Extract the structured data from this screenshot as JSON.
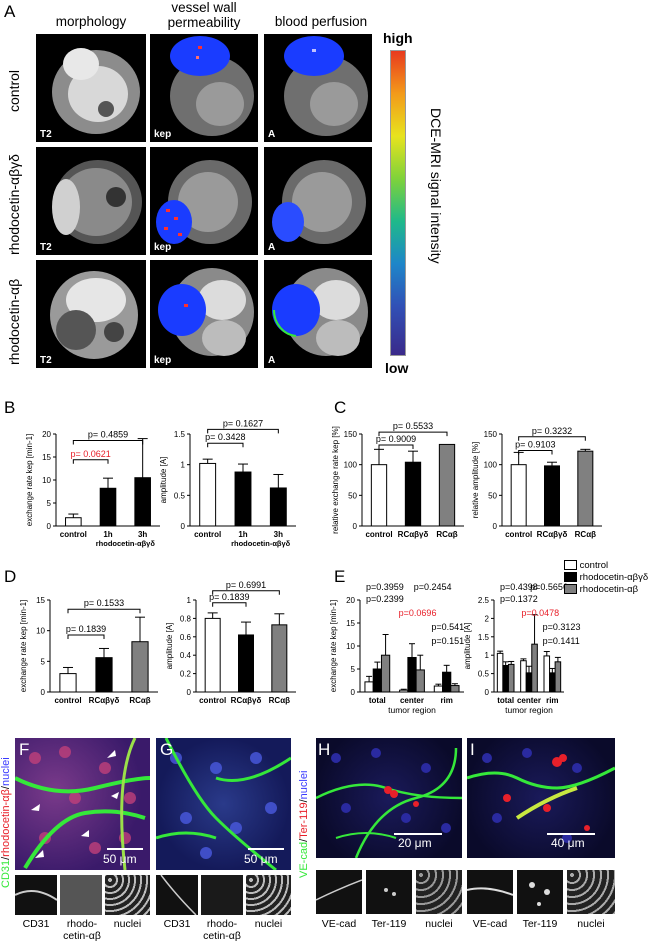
{
  "panel_letters": {
    "A": "A",
    "B": "B",
    "C": "C",
    "D": "D",
    "E": "E",
    "F": "F",
    "G": "G",
    "H": "H",
    "I": "I"
  },
  "panelA": {
    "columns": [
      "morphology",
      "vessel wall permeability",
      "blood perfusion"
    ],
    "columns_lines": [
      [
        "morphology"
      ],
      [
        "vessel wall",
        "permeability"
      ],
      [
        "blood perfusion"
      ]
    ],
    "rows": [
      "control",
      "rhodocetin-αβγδ",
      "rhodocetin-αβ"
    ],
    "tags": [
      "T2",
      "kep",
      "A"
    ],
    "colorbar": {
      "high": "high",
      "low": "low",
      "label": "DCE-MRI signal intensity"
    }
  },
  "chart_data": [
    {
      "panel": "B1",
      "type": "bar",
      "categories": [
        "control",
        "1h",
        "3h"
      ],
      "group_label": "rhodocetin-αβγδ",
      "values": [
        1.8,
        8.2,
        10.5
      ],
      "errors": [
        0.8,
        2.2,
        8.5
      ],
      "ylabel": "exchange rate kep [min-1]",
      "ylim": [
        0,
        20
      ],
      "yticks": [
        0,
        5,
        10,
        15,
        20
      ],
      "colors": [
        "#ffffff",
        "#000000",
        "#000000"
      ],
      "pvals": [
        "p= 0.0621",
        "p= 0.4859"
      ],
      "pval_colors": [
        "#e8202a",
        "#000000"
      ]
    },
    {
      "panel": "B2",
      "type": "bar",
      "categories": [
        "control",
        "1h",
        "3h"
      ],
      "group_label": "rhodocetin-αβγδ",
      "values": [
        1.02,
        0.88,
        0.62
      ],
      "errors": [
        0.07,
        0.13,
        0.22
      ],
      "ylabel": "amplitude [A]",
      "ylim": [
        0,
        1.5
      ],
      "yticks": [
        0.0,
        0.5,
        1.0,
        1.5
      ],
      "colors": [
        "#ffffff",
        "#000000",
        "#000000"
      ],
      "pvals": [
        "p= 0.3428",
        "p= 0.1627"
      ],
      "pval_colors": [
        "#000000",
        "#000000"
      ]
    },
    {
      "panel": "C1",
      "type": "bar",
      "categories": [
        "control",
        "RCαβγδ",
        "RCαβ"
      ],
      "values": [
        100,
        104,
        133
      ],
      "errors": [
        25,
        18,
        0
      ],
      "ylabel": "relative exchange rate kep [%]",
      "ylim": [
        0,
        150
      ],
      "yticks": [
        0,
        50,
        100,
        150
      ],
      "colors": [
        "#ffffff",
        "#000000",
        "#808080"
      ],
      "pvals": [
        "p= 0.9009",
        "p= 0.5533"
      ],
      "pval_colors": [
        "#000000",
        "#000000"
      ]
    },
    {
      "panel": "C2",
      "type": "bar",
      "categories": [
        "control",
        "RCαβγδ",
        "RCαβ"
      ],
      "values": [
        100,
        98,
        122
      ],
      "errors": [
        20,
        6,
        3
      ],
      "ylabel": "relative amplitude [%]",
      "ylim": [
        0,
        150
      ],
      "yticks": [
        0,
        50,
        100,
        150
      ],
      "colors": [
        "#ffffff",
        "#000000",
        "#808080"
      ],
      "pvals": [
        "p= 0.9103",
        "p= 0.3232"
      ],
      "pval_colors": [
        "#000000",
        "#000000"
      ]
    },
    {
      "panel": "D1",
      "type": "bar",
      "categories": [
        "control",
        "RCαβγδ",
        "RCαβ"
      ],
      "values": [
        3.0,
        5.6,
        8.2
      ],
      "errors": [
        1.0,
        1.5,
        4.0
      ],
      "ylabel": "exchange rate kep [min-1]",
      "ylim": [
        0,
        15
      ],
      "yticks": [
        0,
        5,
        10,
        15
      ],
      "colors": [
        "#ffffff",
        "#000000",
        "#808080"
      ],
      "pvals": [
        "p= 0.1839",
        "p= 0.1533"
      ],
      "pval_colors": [
        "#000000",
        "#000000"
      ]
    },
    {
      "panel": "D2",
      "type": "bar",
      "categories": [
        "control",
        "RCαβγδ",
        "RCαβ"
      ],
      "values": [
        0.8,
        0.62,
        0.73
      ],
      "errors": [
        0.06,
        0.14,
        0.12
      ],
      "ylabel": "amplitude [A]",
      "ylim": [
        0,
        1.0
      ],
      "yticks": [
        0.0,
        0.2,
        0.4,
        0.6,
        0.8,
        1.0
      ],
      "colors": [
        "#ffffff",
        "#000000",
        "#808080"
      ],
      "pvals": [
        "p= 0.1839",
        "p= 0.6991"
      ],
      "pval_colors": [
        "#000000",
        "#000000"
      ]
    },
    {
      "panel": "E1",
      "type": "bar",
      "categories": [
        "total",
        "center",
        "rim"
      ],
      "xlabel": "tumor region",
      "ylabel": "exchange rate kep [min-1]",
      "ylim": [
        0,
        20
      ],
      "yticks": [
        0,
        5,
        10,
        15,
        20
      ],
      "series": [
        {
          "name": "control",
          "values": [
            2.2,
            0.4,
            1.3
          ],
          "errors": [
            1.2,
            0.2,
            0.4
          ],
          "color": "#ffffff"
        },
        {
          "name": "rhodocetin-αβγδ",
          "values": [
            5.0,
            7.5,
            4.3
          ],
          "errors": [
            1.5,
            3.0,
            1.5
          ],
          "color": "#000000"
        },
        {
          "name": "rhodocetin-αβ",
          "values": [
            8.0,
            4.8,
            1.4
          ],
          "errors": [
            4.5,
            3.2,
            0.4
          ],
          "color": "#808080"
        }
      ],
      "pvals": [
        "p=0.3959",
        "p=0.2454",
        "p=0.2399",
        "p=0.0696",
        "p=0.541",
        "p=0.151"
      ],
      "pval_colors": [
        "#000000",
        "#000000",
        "#000000",
        "#e8202a",
        "#000000",
        "#000000"
      ]
    },
    {
      "panel": "E2",
      "type": "bar",
      "categories": [
        "total",
        "center",
        "rim"
      ],
      "xlabel": "tumor region",
      "ylabel": "amplitude [A]",
      "ylim": [
        0,
        2.5
      ],
      "yticks": [
        0.0,
        0.5,
        1.0,
        1.5,
        2.0,
        2.5
      ],
      "series": [
        {
          "name": "control",
          "values": [
            1.05,
            0.85,
            0.98
          ],
          "errors": [
            0.06,
            0.05,
            0.12
          ],
          "color": "#ffffff"
        },
        {
          "name": "rhodocetin-αβγδ",
          "values": [
            0.72,
            0.52,
            0.52
          ],
          "errors": [
            0.1,
            0.18,
            0.12
          ],
          "color": "#000000"
        },
        {
          "name": "rhodocetin-αβ",
          "values": [
            0.75,
            1.3,
            0.82
          ],
          "errors": [
            0.08,
            0.8,
            0.12
          ],
          "color": "#808080"
        }
      ],
      "pvals": [
        "p=0.4398",
        "p=0.5656",
        "p=0.1372",
        "p=0.0478",
        "p=0.3123",
        "p=0.1411"
      ],
      "pval_colors": [
        "#000000",
        "#000000",
        "#000000",
        "#e8202a",
        "#000000",
        "#000000"
      ]
    }
  ],
  "legendE": [
    "control",
    "rhodocetin-αβγδ",
    "rhodocetin-αβ"
  ],
  "bottom": {
    "F_side": [
      "CD31",
      "/",
      "rhodocetin-αβ",
      "/",
      "nuclei"
    ],
    "H_side": [
      "VE-cad",
      "/",
      "Ter-119",
      "/",
      "nuclei"
    ],
    "scale": {
      "F": "50 μm",
      "G": "50 μm",
      "H": "20 μm",
      "I": "40 μm"
    },
    "thumbs_FG": [
      "CD31",
      "rhodo-",
      "cetin-αβ",
      "nuclei"
    ],
    "thumbs_HI": [
      "VE-cad",
      "Ter-119",
      "nuclei"
    ]
  },
  "colors": {
    "red_p": "#e8202a",
    "blue_roi": "#1a3cff",
    "green_cd31": "#35e83a"
  }
}
